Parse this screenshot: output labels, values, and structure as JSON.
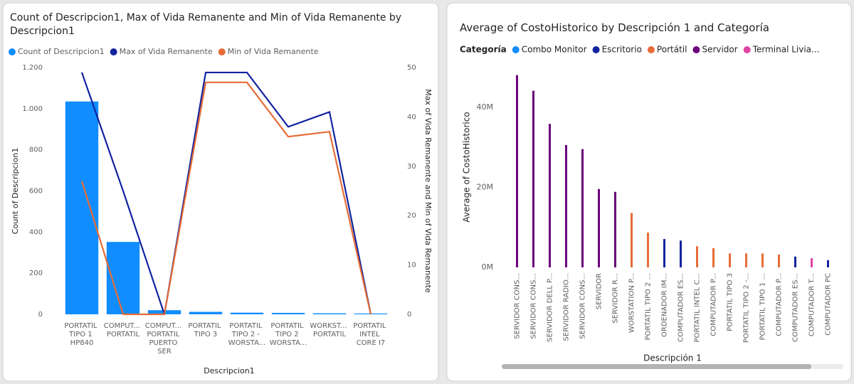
{
  "chart_data": [
    {
      "type": "combo",
      "title": "Count of Descripcion1, Max of Vida Remanente and Min of Vida Remanente by Descripcion1",
      "x_label": "Descripcion1",
      "y_label": "Count of Descripcion1",
      "y2_label": "Max of Vida Remanente and Min of Vida Remanente",
      "categories": [
        "PORTATIL TIPO 1 HP840",
        "COMPUT... PORTATIL",
        "COMPUT... PORTATIL PUERTO SER",
        "PORTATIL TIPO 3",
        "PORTATIL TIPO 2 - WORSTA...",
        "PORTATIL TIPO 2 WORSTA...",
        "WORKST... PORTATIL",
        "PORTATIL INTEL CORE I7"
      ],
      "series": [
        {
          "name": "Count of Descripcion1",
          "type": "bar",
          "color": "#118dff",
          "values": [
            1035,
            352,
            20,
            12,
            8,
            7,
            5,
            4
          ]
        },
        {
          "name": "Max of Vida Remanente",
          "type": "line",
          "axis": "y2",
          "color": "#12239e",
          "values": [
            49,
            25,
            0,
            49,
            49,
            38,
            41,
            0
          ]
        },
        {
          "name": "Min of Vida Remanente",
          "type": "line",
          "axis": "y2",
          "color": "#e66c37",
          "values": [
            27,
            0,
            0,
            47,
            47,
            36,
            37,
            0
          ]
        }
      ],
      "ylim": [
        0,
        1200
      ],
      "yticks": [
        0,
        200,
        400,
        600,
        800,
        {
          "value": 1000,
          "label": "1.000"
        },
        {
          "value": 1200,
          "label": "1.200"
        }
      ],
      "y2lim": [
        0,
        50
      ],
      "y2ticks": [
        0,
        10,
        20,
        30,
        40,
        50
      ],
      "grid": false
    },
    {
      "type": "bar",
      "title": "Average of CostoHistorico by Descripción 1 and Categoría",
      "x_label": "Descripción 1",
      "y_label": "Average of CostoHistorico",
      "legend_title": "Categoría",
      "categories": [
        "SERVIDOR CONS...",
        "SERVIDOR CONS...",
        "SERVIDOR DELL P...",
        "SERVIDOR RADIO...",
        "SERVIDOR CONS...",
        "SERVIDOR",
        "SERVIDOR R...",
        "WORSTATION P...",
        "PORTATIL TIPO 2 ...",
        "ORDENADOR IM...",
        "COMPUTADOR ES...",
        "PORTATIL INTEL C...",
        "COMPUTADOR P...",
        "PORTATIL TIPO 3",
        "PORTATIL TIPO 2 -...",
        "PORTATIL TIPO 1 ...",
        "COMPUTADOR P...",
        "COMPUTADOR ES...",
        "COMPUTADOR T...",
        "COMPUTADOR PC"
      ],
      "series": [
        {
          "name": "Combo Monitor",
          "color": "#118dff",
          "values": [
            null,
            null,
            null,
            null,
            null,
            null,
            null,
            null,
            null,
            null,
            null,
            null,
            null,
            null,
            null,
            null,
            null,
            null,
            null,
            null
          ]
        },
        {
          "name": "Escritorio",
          "color": "#12239e",
          "values": [
            null,
            null,
            null,
            null,
            null,
            null,
            null,
            null,
            null,
            7100000,
            6700000,
            null,
            null,
            null,
            null,
            null,
            null,
            2700000,
            null,
            1800000
          ]
        },
        {
          "name": "Portátil",
          "color": "#e66c37",
          "values": [
            null,
            null,
            null,
            null,
            null,
            null,
            null,
            13600000,
            8700000,
            null,
            null,
            5300000,
            4800000,
            3500000,
            3500000,
            3500000,
            3200000,
            null,
            null,
            null
          ]
        },
        {
          "name": "Servidor",
          "color": "#6b007b",
          "values": [
            48100000,
            44200000,
            35900000,
            30600000,
            29600000,
            19600000,
            18900000,
            null,
            null,
            null,
            null,
            null,
            null,
            null,
            null,
            null,
            null,
            null,
            null,
            null
          ]
        },
        {
          "name": "Terminal Livia...",
          "color": "#e044a7",
          "values": [
            null,
            null,
            null,
            null,
            null,
            null,
            null,
            null,
            null,
            null,
            null,
            null,
            null,
            null,
            null,
            null,
            null,
            null,
            2300000,
            null
          ]
        }
      ],
      "ylim": [
        0,
        50000000
      ],
      "yticks": [
        {
          "value": 0,
          "label": "0M"
        },
        {
          "value": 20000000,
          "label": "20M"
        },
        {
          "value": 40000000,
          "label": "40M"
        }
      ],
      "grid": false
    }
  ]
}
